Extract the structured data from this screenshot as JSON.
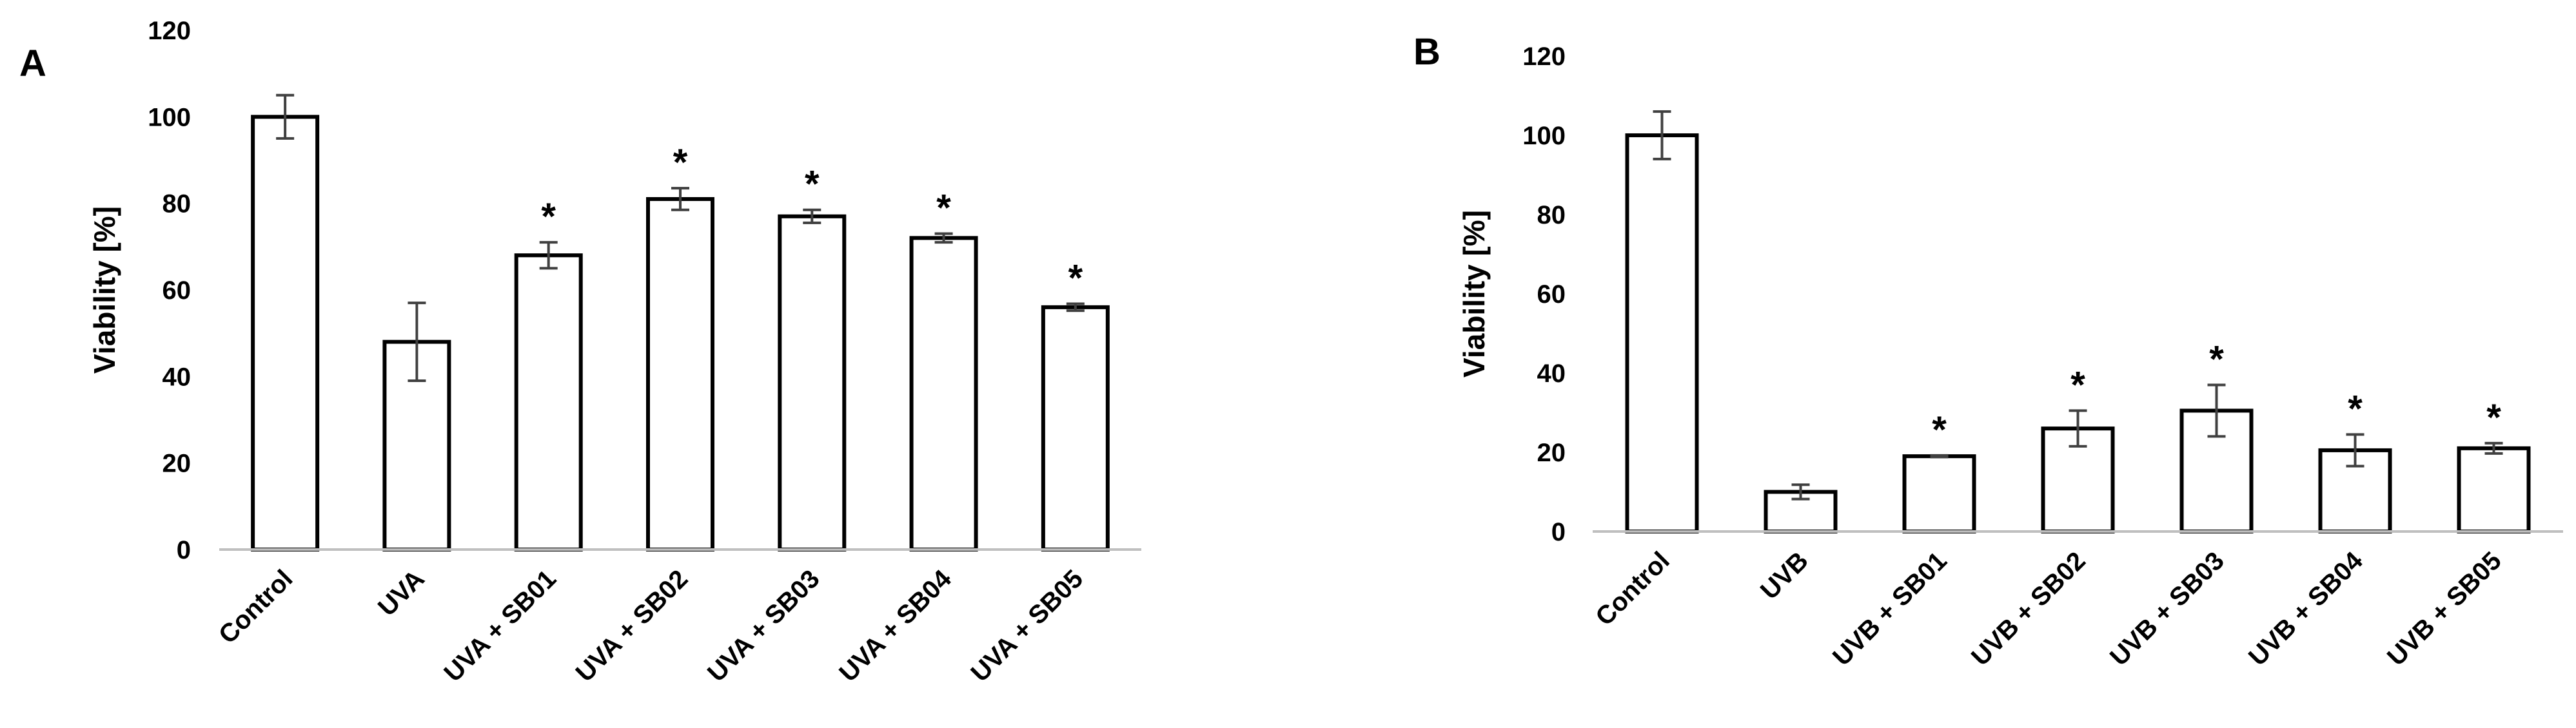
{
  "chart_data": [
    {
      "type": "bar",
      "panel": "A",
      "ylabel": "Viability [%]",
      "ylim": [
        0,
        120
      ],
      "yticks": [
        "0",
        "20",
        "40",
        "60",
        "80",
        "100",
        "120"
      ],
      "categories": [
        "Control",
        "UVA",
        "UVA + SB01",
        "UVA + SB02",
        "UVA + SB03",
        "UVA + SB04",
        "UVA + SB05"
      ],
      "values": [
        100,
        48,
        68,
        81,
        77,
        72,
        56
      ],
      "errors": [
        5,
        9,
        3,
        2.5,
        1.5,
        1,
        0.8
      ],
      "annotations": [
        "",
        "",
        "*",
        "*",
        "*",
        "*",
        "*"
      ],
      "grid": false,
      "legend": "none"
    },
    {
      "type": "bar",
      "panel": "B",
      "ylabel": "Viability [%]",
      "ylim": [
        0,
        120
      ],
      "yticks": [
        "0",
        "20",
        "40",
        "60",
        "80",
        "100",
        "120"
      ],
      "categories": [
        "Control",
        "UVB",
        "UVB + SB01",
        "UVB + SB02",
        "UVB + SB03",
        "UVB + SB04",
        "UVB + SB05"
      ],
      "values": [
        100,
        10,
        19,
        26,
        30.5,
        20.5,
        21
      ],
      "errors": [
        6,
        1.8,
        0.2,
        4.5,
        6.5,
        4,
        1.3
      ],
      "annotations": [
        "",
        "",
        "*",
        "*",
        "*",
        "*",
        "*"
      ],
      "grid": false,
      "legend": "none"
    }
  ]
}
